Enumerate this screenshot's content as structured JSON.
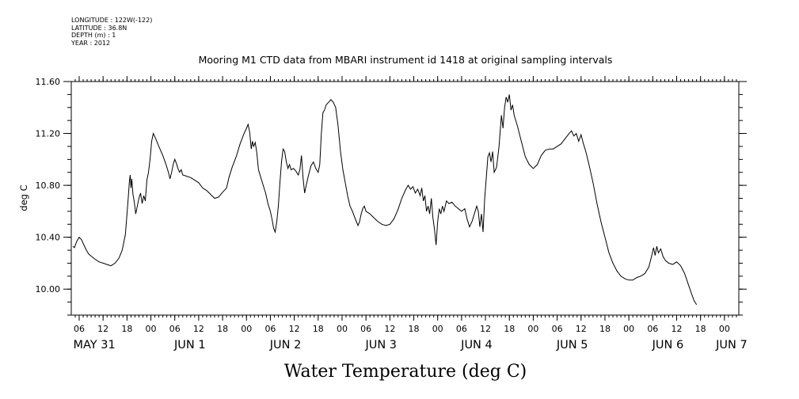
{
  "metadata": [
    "LONGITUDE : 122W(-122)",
    "LATITUDE : 36.8N",
    "DEPTH (m) : 1",
    "YEAR : 2012"
  ],
  "chart_data": {
    "type": "line",
    "title": "Mooring M1 CTD data from MBARI instrument id 1418 at original sampling intervals",
    "xlabel": "Water Temperature (deg C)",
    "ylabel": "deg C",
    "ylim": [
      9.8,
      11.6
    ],
    "yticks": [
      10.0,
      10.4,
      10.8,
      11.2,
      11.6
    ],
    "ytick_labels": [
      "10.00",
      "10.40",
      "10.80",
      "11.20",
      "11.60"
    ],
    "xlim": [
      0,
      166
    ],
    "xticks": [
      {
        "h": 0,
        "label": "06"
      },
      {
        "h": 6,
        "label": "12"
      },
      {
        "h": 12,
        "label": "18"
      },
      {
        "h": 18,
        "label": "00"
      },
      {
        "h": 24,
        "label": "06"
      },
      {
        "h": 30,
        "label": "12"
      },
      {
        "h": 36,
        "label": "18"
      },
      {
        "h": 42,
        "label": "00"
      },
      {
        "h": 48,
        "label": "06"
      },
      {
        "h": 54,
        "label": "12"
      },
      {
        "h": 60,
        "label": "18"
      },
      {
        "h": 66,
        "label": "00"
      },
      {
        "h": 72,
        "label": "06"
      },
      {
        "h": 78,
        "label": "12"
      },
      {
        "h": 84,
        "label": "18"
      },
      {
        "h": 90,
        "label": "00"
      },
      {
        "h": 96,
        "label": "06"
      },
      {
        "h": 102,
        "label": "12"
      },
      {
        "h": 108,
        "label": "18"
      },
      {
        "h": 114,
        "label": "00"
      },
      {
        "h": 120,
        "label": "06"
      },
      {
        "h": 126,
        "label": "12"
      },
      {
        "h": 132,
        "label": "18"
      },
      {
        "h": 138,
        "label": "00"
      },
      {
        "h": 144,
        "label": "06"
      },
      {
        "h": 150,
        "label": "12"
      },
      {
        "h": 156,
        "label": "18"
      },
      {
        "h": 162,
        "label": "00"
      }
    ],
    "day_labels": [
      {
        "h": 3,
        "label": "MAY 31"
      },
      {
        "h": 27,
        "label": "JUN  1"
      },
      {
        "h": 51,
        "label": "JUN  2"
      },
      {
        "h": 75,
        "label": "JUN  3"
      },
      {
        "h": 99,
        "label": "JUN  4"
      },
      {
        "h": 123,
        "label": "JUN  5"
      },
      {
        "h": 147,
        "label": "JUN  6"
      },
      {
        "h": 163,
        "label": "JUN  7"
      }
    ],
    "series": [
      {
        "color": "#000000",
        "points": [
          [
            -1.6,
            10.33
          ],
          [
            -1.2,
            10.32
          ],
          [
            -0.6,
            10.37
          ],
          [
            0,
            10.4
          ],
          [
            0.6,
            10.38
          ],
          [
            1.2,
            10.34
          ],
          [
            1.8,
            10.3
          ],
          [
            2.4,
            10.27
          ],
          [
            3.2,
            10.25
          ],
          [
            4.0,
            10.23
          ],
          [
            5.0,
            10.21
          ],
          [
            6.0,
            10.2
          ],
          [
            7.0,
            10.19
          ],
          [
            8.0,
            10.18
          ],
          [
            9.0,
            10.2
          ],
          [
            10.0,
            10.24
          ],
          [
            10.8,
            10.3
          ],
          [
            11.6,
            10.42
          ],
          [
            12.0,
            10.58
          ],
          [
            12.3,
            10.7
          ],
          [
            12.6,
            10.83
          ],
          [
            12.8,
            10.88
          ],
          [
            13.0,
            10.78
          ],
          [
            13.2,
            10.85
          ],
          [
            13.5,
            10.73
          ],
          [
            13.8,
            10.68
          ],
          [
            14.2,
            10.58
          ],
          [
            14.6,
            10.64
          ],
          [
            15.0,
            10.7
          ],
          [
            15.4,
            10.74
          ],
          [
            15.8,
            10.66
          ],
          [
            16.2,
            10.72
          ],
          [
            16.6,
            10.68
          ],
          [
            17.0,
            10.84
          ],
          [
            17.4,
            10.9
          ],
          [
            17.8,
            11.0
          ],
          [
            18.2,
            11.14
          ],
          [
            18.6,
            11.2
          ],
          [
            19.2,
            11.16
          ],
          [
            20.0,
            11.1
          ],
          [
            21.0,
            11.03
          ],
          [
            21.8,
            10.96
          ],
          [
            22.4,
            10.9
          ],
          [
            22.8,
            10.85
          ],
          [
            23.2,
            10.9
          ],
          [
            23.6,
            10.96
          ],
          [
            24.0,
            11.0
          ],
          [
            24.4,
            10.97
          ],
          [
            24.8,
            10.93
          ],
          [
            25.2,
            10.9
          ],
          [
            25.6,
            10.92
          ],
          [
            26.0,
            10.88
          ],
          [
            27.0,
            10.87
          ],
          [
            28.0,
            10.86
          ],
          [
            29.0,
            10.84
          ],
          [
            30.0,
            10.82
          ],
          [
            31.0,
            10.78
          ],
          [
            32.0,
            10.76
          ],
          [
            33.0,
            10.73
          ],
          [
            34.0,
            10.7
          ],
          [
            35.0,
            10.71
          ],
          [
            35.8,
            10.74
          ],
          [
            36.4,
            10.76
          ],
          [
            37.0,
            10.78
          ],
          [
            37.6,
            10.86
          ],
          [
            38.4,
            10.94
          ],
          [
            39.4,
            11.02
          ],
          [
            40.4,
            11.12
          ],
          [
            41.4,
            11.2
          ],
          [
            42.0,
            11.24
          ],
          [
            42.4,
            11.27
          ],
          [
            42.8,
            11.21
          ],
          [
            43.2,
            11.08
          ],
          [
            43.5,
            11.14
          ],
          [
            43.8,
            11.1
          ],
          [
            44.2,
            11.13
          ],
          [
            44.6,
            11.05
          ],
          [
            45.0,
            10.92
          ],
          [
            45.6,
            10.86
          ],
          [
            46.2,
            10.8
          ],
          [
            46.8,
            10.74
          ],
          [
            47.4,
            10.66
          ],
          [
            48.0,
            10.6
          ],
          [
            48.4,
            10.54
          ],
          [
            48.8,
            10.47
          ],
          [
            49.2,
            10.44
          ],
          [
            49.6,
            10.52
          ],
          [
            50.0,
            10.64
          ],
          [
            50.4,
            10.82
          ],
          [
            50.8,
            10.98
          ],
          [
            51.2,
            11.08
          ],
          [
            51.6,
            11.06
          ],
          [
            52.0,
            10.98
          ],
          [
            52.4,
            10.93
          ],
          [
            52.8,
            10.96
          ],
          [
            53.2,
            10.92
          ],
          [
            53.8,
            10.93
          ],
          [
            54.4,
            10.91
          ],
          [
            55.0,
            10.88
          ],
          [
            55.4,
            10.92
          ],
          [
            55.8,
            11.03
          ],
          [
            56.2,
            10.86
          ],
          [
            56.6,
            10.74
          ],
          [
            57.0,
            10.8
          ],
          [
            57.6,
            10.88
          ],
          [
            58.2,
            10.95
          ],
          [
            58.8,
            10.98
          ],
          [
            59.4,
            10.93
          ],
          [
            60.0,
            10.9
          ],
          [
            60.4,
            10.96
          ],
          [
            60.8,
            11.2
          ],
          [
            61.2,
            11.36
          ],
          [
            61.6,
            11.38
          ],
          [
            62.0,
            11.42
          ],
          [
            62.6,
            11.44
          ],
          [
            63.2,
            11.46
          ],
          [
            63.8,
            11.44
          ],
          [
            64.4,
            11.4
          ],
          [
            65.0,
            11.26
          ],
          [
            65.6,
            11.06
          ],
          [
            66.2,
            10.92
          ],
          [
            66.8,
            10.82
          ],
          [
            67.4,
            10.72
          ],
          [
            68.0,
            10.64
          ],
          [
            68.6,
            10.6
          ],
          [
            69.2,
            10.55
          ],
          [
            69.6,
            10.52
          ],
          [
            70.0,
            10.49
          ],
          [
            70.4,
            10.52
          ],
          [
            70.8,
            10.58
          ],
          [
            71.2,
            10.62
          ],
          [
            71.6,
            10.64
          ],
          [
            72.0,
            10.6
          ],
          [
            73.0,
            10.58
          ],
          [
            74.0,
            10.55
          ],
          [
            75.0,
            10.52
          ],
          [
            76.0,
            10.5
          ],
          [
            77.0,
            10.49
          ],
          [
            78.0,
            10.5
          ],
          [
            79.0,
            10.54
          ],
          [
            80.0,
            10.61
          ],
          [
            81.0,
            10.7
          ],
          [
            82.0,
            10.77
          ],
          [
            82.6,
            10.8
          ],
          [
            83.2,
            10.77
          ],
          [
            83.8,
            10.79
          ],
          [
            84.4,
            10.74
          ],
          [
            85.0,
            10.77
          ],
          [
            85.6,
            10.72
          ],
          [
            86.0,
            10.78
          ],
          [
            86.4,
            10.68
          ],
          [
            86.8,
            10.72
          ],
          [
            87.2,
            10.6
          ],
          [
            87.6,
            10.64
          ],
          [
            88.0,
            10.58
          ],
          [
            88.4,
            10.7
          ],
          [
            88.8,
            10.55
          ],
          [
            89.2,
            10.46
          ],
          [
            89.6,
            10.34
          ],
          [
            90.0,
            10.52
          ],
          [
            90.4,
            10.62
          ],
          [
            90.8,
            10.58
          ],
          [
            91.2,
            10.64
          ],
          [
            91.6,
            10.6
          ],
          [
            92.2,
            10.68
          ],
          [
            92.8,
            10.66
          ],
          [
            93.6,
            10.67
          ],
          [
            94.4,
            10.64
          ],
          [
            95.2,
            10.62
          ],
          [
            96.0,
            10.6
          ],
          [
            96.8,
            10.62
          ],
          [
            97.4,
            10.54
          ],
          [
            98.0,
            10.48
          ],
          [
            98.6,
            10.52
          ],
          [
            99.2,
            10.58
          ],
          [
            99.8,
            10.64
          ],
          [
            100.2,
            10.6
          ],
          [
            100.6,
            10.48
          ],
          [
            101.0,
            10.58
          ],
          [
            101.4,
            10.44
          ],
          [
            101.8,
            10.7
          ],
          [
            102.2,
            10.86
          ],
          [
            102.6,
            11.02
          ],
          [
            103.0,
            11.05
          ],
          [
            103.4,
            10.98
          ],
          [
            103.8,
            11.06
          ],
          [
            104.2,
            10.9
          ],
          [
            104.8,
            10.94
          ],
          [
            105.4,
            11.1
          ],
          [
            106.0,
            11.34
          ],
          [
            106.4,
            11.24
          ],
          [
            106.8,
            11.4
          ],
          [
            107.2,
            11.48
          ],
          [
            107.6,
            11.44
          ],
          [
            108.0,
            11.5
          ],
          [
            108.4,
            11.38
          ],
          [
            108.8,
            11.42
          ],
          [
            109.2,
            11.34
          ],
          [
            110.0,
            11.26
          ],
          [
            111.0,
            11.14
          ],
          [
            112.0,
            11.02
          ],
          [
            113.0,
            10.96
          ],
          [
            114.0,
            10.93
          ],
          [
            115.0,
            10.96
          ],
          [
            116.0,
            11.03
          ],
          [
            117.0,
            11.07
          ],
          [
            118.0,
            11.08
          ],
          [
            119.0,
            11.08
          ],
          [
            120.0,
            11.1
          ],
          [
            121.0,
            11.12
          ],
          [
            122.0,
            11.16
          ],
          [
            123.0,
            11.2
          ],
          [
            123.6,
            11.22
          ],
          [
            124.2,
            11.18
          ],
          [
            124.8,
            11.2
          ],
          [
            125.4,
            11.14
          ],
          [
            126.0,
            11.19
          ],
          [
            126.6,
            11.12
          ],
          [
            127.2,
            11.06
          ],
          [
            128.0,
            10.96
          ],
          [
            129.0,
            10.82
          ],
          [
            130.0,
            10.66
          ],
          [
            131.0,
            10.52
          ],
          [
            132.0,
            10.4
          ],
          [
            133.0,
            10.28
          ],
          [
            134.0,
            10.2
          ],
          [
            135.0,
            10.14
          ],
          [
            136.0,
            10.1
          ],
          [
            137.0,
            10.08
          ],
          [
            138.0,
            10.07
          ],
          [
            139.0,
            10.07
          ],
          [
            140.0,
            10.09
          ],
          [
            141.0,
            10.1
          ],
          [
            142.0,
            10.12
          ],
          [
            143.0,
            10.17
          ],
          [
            143.6,
            10.24
          ],
          [
            144.2,
            10.32
          ],
          [
            144.6,
            10.26
          ],
          [
            145.0,
            10.33
          ],
          [
            145.4,
            10.28
          ],
          [
            146.0,
            10.31
          ],
          [
            146.6,
            10.25
          ],
          [
            147.2,
            10.22
          ],
          [
            148.0,
            10.2
          ],
          [
            149.0,
            10.19
          ],
          [
            150.0,
            10.21
          ],
          [
            151.0,
            10.18
          ],
          [
            152.0,
            10.12
          ],
          [
            153.0,
            10.03
          ],
          [
            153.8,
            9.96
          ],
          [
            154.4,
            9.91
          ],
          [
            155.0,
            9.88
          ]
        ]
      }
    ]
  }
}
